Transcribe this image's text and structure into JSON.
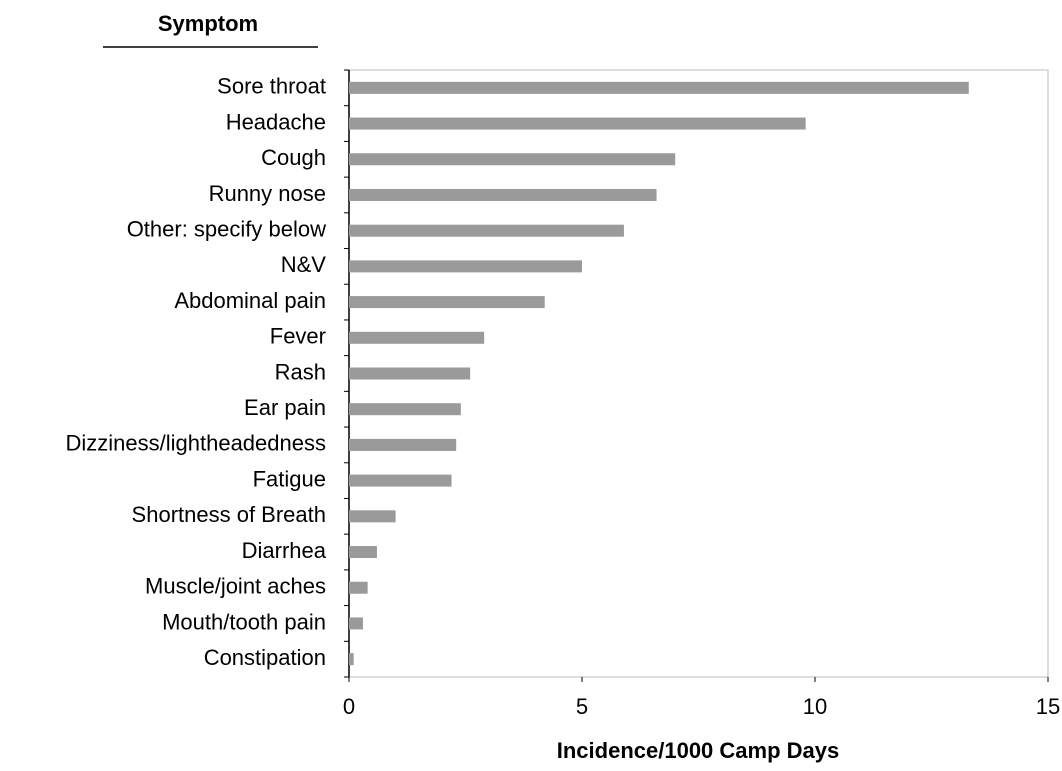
{
  "chart_data": {
    "type": "bar",
    "orientation": "horizontal",
    "y_label": "Symptom",
    "x_label": "Incidence/1000 Camp Days",
    "categories": [
      "Sore throat",
      "Headache",
      "Cough",
      "Runny nose",
      "Other: specify below",
      "N&V",
      "Abdominal pain",
      "Fever",
      "Rash",
      "Ear pain",
      "Dizziness/lightheadedness",
      "Fatigue",
      "Shortness of Breath",
      "Diarrhea",
      "Muscle/joint aches",
      "Mouth/tooth pain",
      "Constipation"
    ],
    "values": [
      13.3,
      9.8,
      7.0,
      6.6,
      5.9,
      5.0,
      4.2,
      2.9,
      2.6,
      2.4,
      2.3,
      2.2,
      1.0,
      0.6,
      0.4,
      0.3,
      0.1
    ],
    "color": "#9a9a9a",
    "xlim": [
      0,
      15
    ],
    "xticks": [
      0,
      5,
      10,
      15
    ],
    "grid": false
  }
}
